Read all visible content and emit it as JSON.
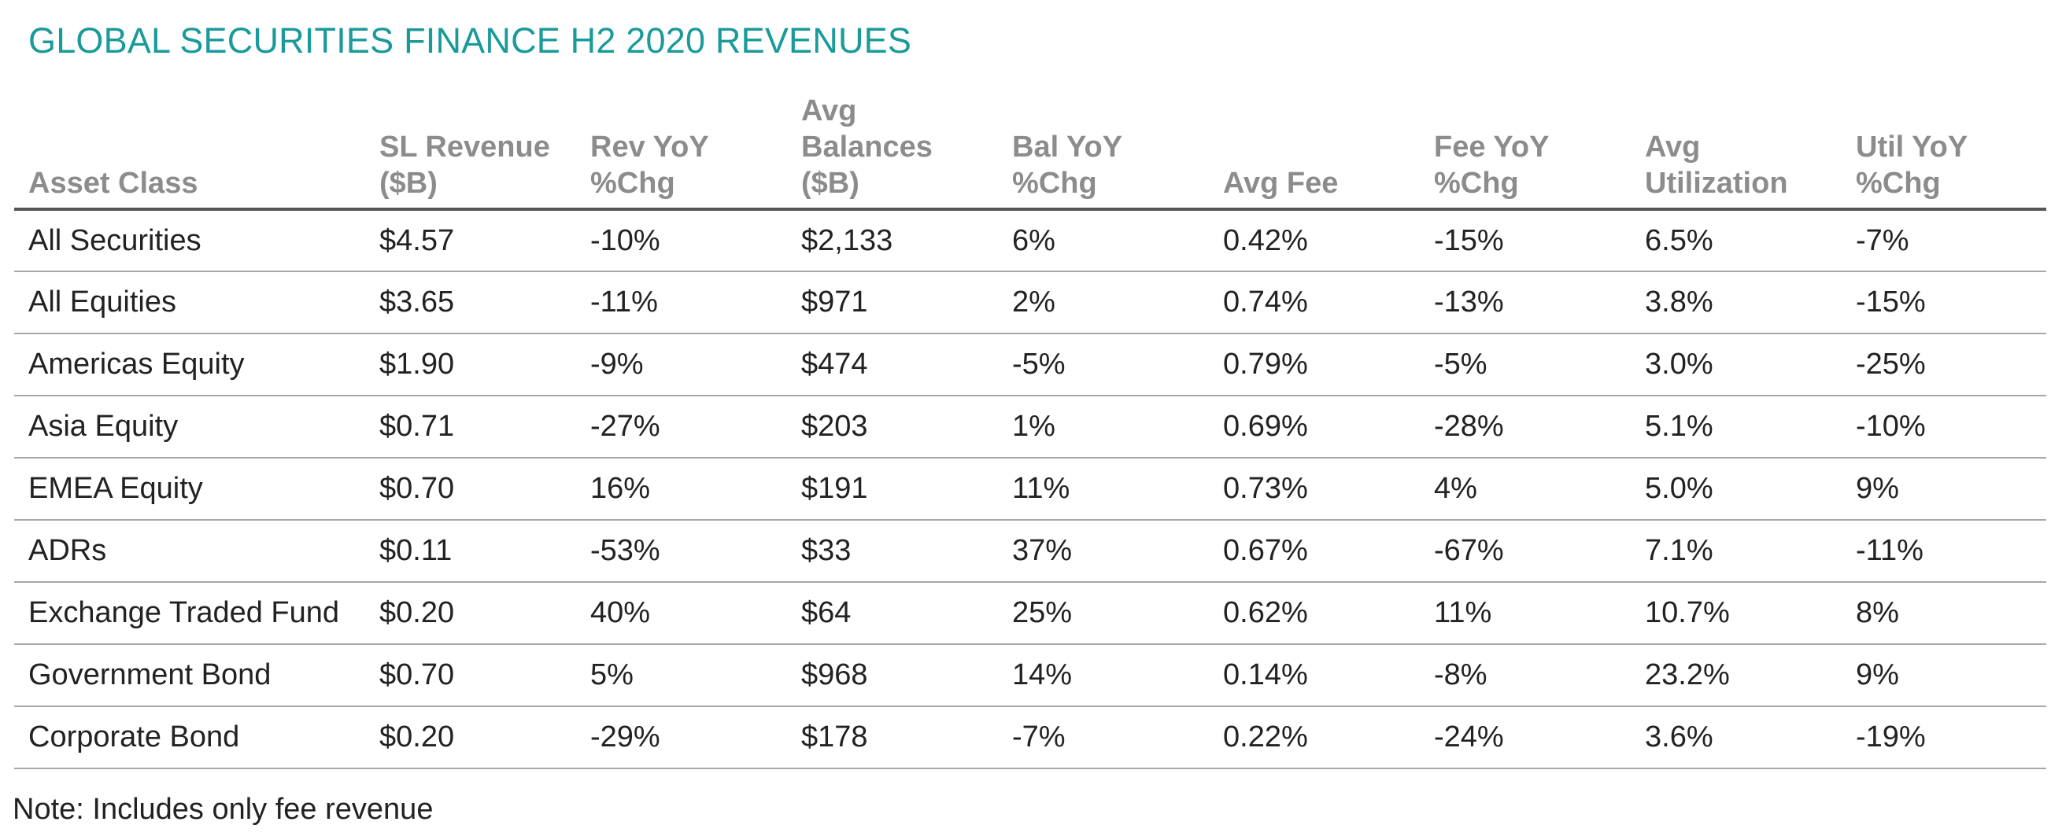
{
  "chart_data": {
    "type": "table",
    "title": "GLOBAL SECURITIES FINANCE H2 2020 REVENUES",
    "columns": [
      "Asset Class",
      "SL Revenue\n($B)",
      "Rev YoY\n%Chg",
      "Avg\nBalances\n($B)",
      "Bal YoY\n%Chg",
      "Avg Fee",
      "Fee YoY\n%Chg",
      "Avg\nUtilization",
      "Util YoY\n%Chg"
    ],
    "rows": [
      [
        "All Securities",
        "$4.57",
        "-10%",
        "$2,133",
        "6%",
        "0.42%",
        "-15%",
        "6.5%",
        "-7%"
      ],
      [
        "All Equities",
        "$3.65",
        "-11%",
        "$971",
        "2%",
        "0.74%",
        "-13%",
        "3.8%",
        "-15%"
      ],
      [
        "Americas Equity",
        "$1.90",
        "-9%",
        "$474",
        "-5%",
        "0.79%",
        "-5%",
        "3.0%",
        "-25%"
      ],
      [
        "Asia Equity",
        "$0.71",
        "-27%",
        "$203",
        "1%",
        "0.69%",
        "-28%",
        "5.1%",
        "-10%"
      ],
      [
        "EMEA Equity",
        "$0.70",
        "16%",
        "$191",
        "11%",
        "0.73%",
        "4%",
        "5.0%",
        "9%"
      ],
      [
        "ADRs",
        "$0.11",
        "-53%",
        "$33",
        "37%",
        "0.67%",
        "-67%",
        "7.1%",
        "-11%"
      ],
      [
        "Exchange Traded Fund",
        "$0.20",
        "40%",
        "$64",
        "25%",
        "0.62%",
        "11%",
        "10.7%",
        "8%"
      ],
      [
        "Government Bond",
        "$0.70",
        "5%",
        "$968",
        "14%",
        "0.14%",
        "-8%",
        "23.2%",
        "9%"
      ],
      [
        "Corporate Bond",
        "$0.20",
        "-29%",
        "$178",
        "-7%",
        "0.22%",
        "-24%",
        "3.6%",
        "-19%"
      ]
    ],
    "note": "Note: Includes only fee revenue"
  },
  "colors": {
    "title": "#1a9a9a",
    "header_text": "#8c8c8c",
    "body_text": "#222222",
    "header_rule": "#555555",
    "row_rule": "#a8a8a8"
  }
}
